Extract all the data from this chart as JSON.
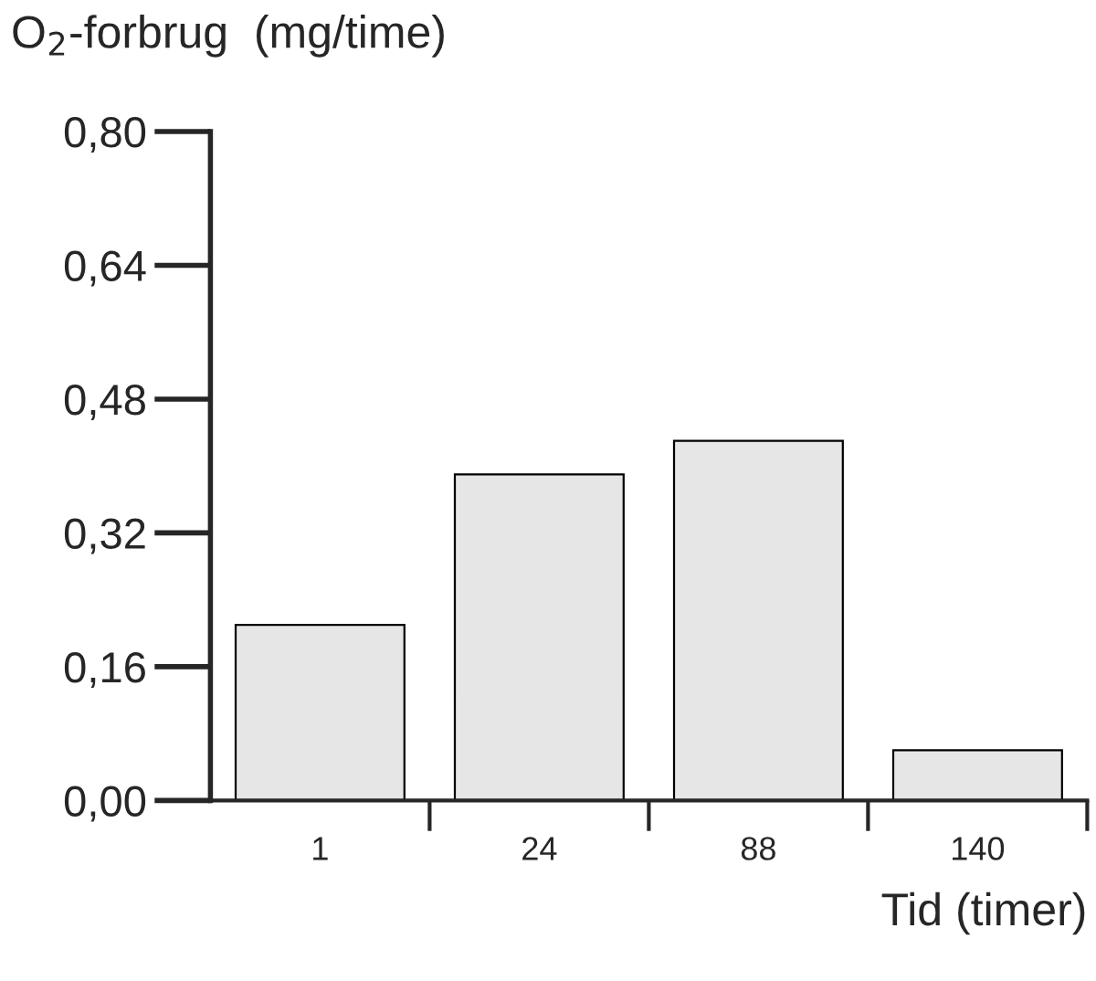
{
  "chart_data": {
    "type": "bar",
    "ylabel": "O$_{2}$-forbrug  (mg/time)",
    "xlabel": "Tid (timer)",
    "categories": [
      "1",
      "24",
      "88",
      "140"
    ],
    "values": [
      0.21,
      0.39,
      0.43,
      0.06
    ],
    "color": "#e6e6e6",
    "ylim": [
      0,
      0.8
    ],
    "yticks": [
      {
        "value": 0,
        "label": "0,00"
      },
      {
        "value": 0.16,
        "label": "0,16"
      },
      {
        "value": 0.32,
        "label": "0,32"
      },
      {
        "value": 0.48,
        "label": "0,48"
      },
      {
        "value": 0.64,
        "label": "0,64"
      },
      {
        "value": 0.8,
        "label": "0,80"
      }
    ],
    "grid": false,
    "legend": false
  }
}
